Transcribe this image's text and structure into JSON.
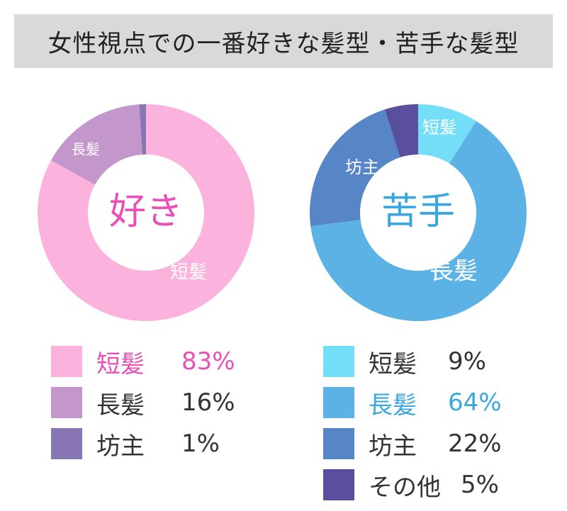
{
  "title": "女性視点での一番好きな髪型・苦手な髪型",
  "chart_data": [
    {
      "type": "pie",
      "variant": "donut",
      "center_label": "好き",
      "center_color": "#e94fb4",
      "highlight_color": "#e94fb4",
      "categories": [
        "短髪",
        "長髪",
        "坊主"
      ],
      "values": [
        83,
        16,
        1
      ],
      "value_labels": [
        "83%",
        "16%",
        "1%"
      ],
      "colors": [
        "#fbb3dd",
        "#c397cc",
        "#8876b4"
      ],
      "slice_labels": [
        "短髪",
        "長髪",
        ""
      ],
      "highlight_index": 0
    },
    {
      "type": "pie",
      "variant": "donut",
      "center_label": "苦手",
      "center_color": "#3aa7e0",
      "highlight_color": "#3aa7e0",
      "categories": [
        "短髪",
        "長髪",
        "坊主",
        "その他"
      ],
      "values": [
        9,
        64,
        22,
        5
      ],
      "value_labels": [
        "9%",
        "64%",
        "22%",
        "5%"
      ],
      "colors": [
        "#74def8",
        "#5cb2e4",
        "#5786c6",
        "#5a4f9c"
      ],
      "slice_labels": [
        "短髪",
        "長髪",
        "坊主",
        ""
      ],
      "highlight_index": 1
    }
  ]
}
